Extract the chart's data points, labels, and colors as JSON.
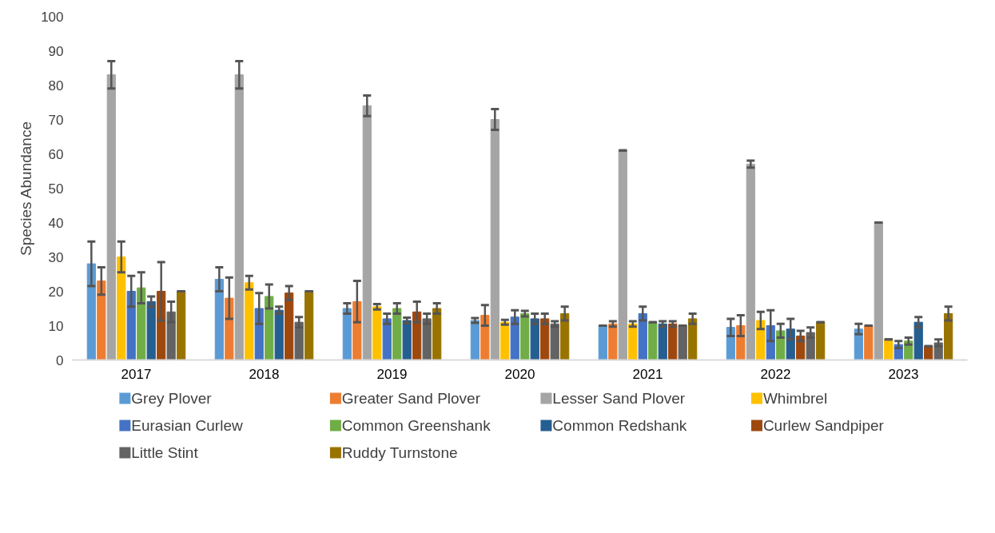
{
  "chart_data": {
    "type": "bar",
    "ylabel": "Species Abundance",
    "categories": [
      "2017",
      "2018",
      "2019",
      "2020",
      "2021",
      "2022",
      "2023"
    ],
    "ylim": [
      0,
      100
    ],
    "yticks": [
      0,
      10,
      20,
      30,
      40,
      50,
      60,
      70,
      80,
      90,
      100
    ],
    "grid": false,
    "legend": "bottom",
    "series": [
      {
        "name": "Grey Plover",
        "color": "#5b9bd5",
        "values": [
          28,
          23.5,
          15,
          11.5,
          10,
          9.5,
          9
        ],
        "errors": [
          6.5,
          3.5,
          1.5,
          0.7,
          0,
          2.5,
          1.5
        ]
      },
      {
        "name": "Greater Sand Plover",
        "color": "#ed7d31",
        "values": [
          23,
          18,
          17,
          13,
          10.5,
          10,
          10
        ],
        "errors": [
          4,
          6,
          6,
          3,
          0.8,
          3,
          0
        ]
      },
      {
        "name": "Lesser Sand Plover",
        "color": "#a5a5a5",
        "values": [
          83,
          83,
          74,
          70,
          61,
          57,
          40
        ],
        "errors": [
          4,
          4,
          3,
          3,
          0,
          1,
          0
        ]
      },
      {
        "name": "Whimbrel",
        "color": "#ffc000",
        "values": [
          30,
          22.5,
          15.5,
          11,
          10.5,
          11.5,
          6
        ],
        "errors": [
          4.5,
          2,
          0.8,
          0.7,
          0.8,
          2.5,
          0
        ]
      },
      {
        "name": "Eurasian Curlew",
        "color": "#4472c4",
        "values": [
          20,
          15,
          12,
          12.5,
          13.5,
          10,
          4.5
        ],
        "errors": [
          4.5,
          4.5,
          1.5,
          2,
          2,
          4.5,
          1
        ]
      },
      {
        "name": "Common Greenshank",
        "color": "#70ad47",
        "values": [
          21,
          18.5,
          15,
          13.5,
          11,
          8.5,
          5.5
        ],
        "errors": [
          4.5,
          3.5,
          1.5,
          0.8,
          0,
          2,
          1
        ]
      },
      {
        "name": "Common Redshank",
        "color": "#255e91",
        "values": [
          17,
          14.5,
          11.5,
          12,
          10.5,
          9,
          11
        ],
        "errors": [
          1.5,
          1,
          0.8,
          1.5,
          0.8,
          3,
          1.5
        ]
      },
      {
        "name": "Curlew Sandpiper",
        "color": "#9e480e",
        "values": [
          20,
          19.5,
          14,
          12,
          10.5,
          7,
          4
        ],
        "errors": [
          8.5,
          2,
          3,
          1.5,
          0.8,
          1.5,
          0
        ]
      },
      {
        "name": "Little Stint",
        "color": "#636363",
        "values": [
          14,
          11,
          12,
          10.5,
          10,
          8,
          5
        ],
        "errors": [
          3,
          1.5,
          1.5,
          0.8,
          0,
          1.5,
          1
        ]
      },
      {
        "name": "Ruddy Turnstone",
        "color": "#997300",
        "values": [
          20,
          20,
          15,
          13.5,
          12,
          11,
          13.5
        ],
        "errors": [
          0,
          0,
          1.5,
          2,
          1.5,
          0,
          2
        ]
      }
    ]
  }
}
